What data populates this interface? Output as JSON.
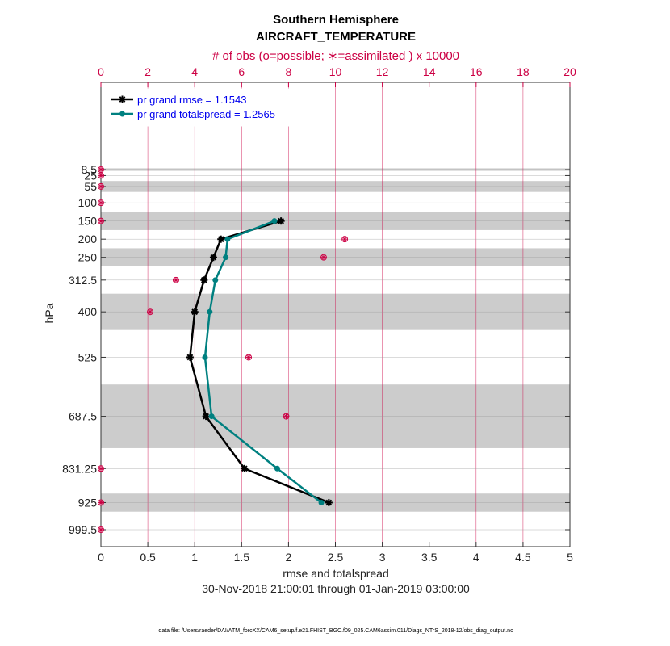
{
  "chart_data": {
    "type": "line",
    "title": "Southern Hemisphere",
    "subtitle": "AIRCRAFT_TEMPERATURE",
    "top_axis_label": "# of obs (o=possible; ∗=assimilated ) x 10000",
    "xlabel": "rmse and totalspread",
    "ylabel": "hPa",
    "date_range": "30-Nov-2018 21:00:01 through 01-Jan-2019 03:00:00",
    "footnote": "data file: /Users/raeder/DAI/ATM_forcXX/CAM6_setup/f.e21.FHIST_BGC.f09_025.CAM6assim.011/Diags_NTrS_2018-12/obs_diag_output.nc",
    "xlim": [
      0,
      5
    ],
    "top_xlim": [
      0,
      20
    ],
    "x_ticks": [
      "0",
      "0.5",
      "1",
      "1.5",
      "2",
      "2.5",
      "3",
      "3.5",
      "4",
      "4.5",
      "5"
    ],
    "top_ticks": [
      "0",
      "2",
      "4",
      "6",
      "8",
      "10",
      "12",
      "14",
      "16",
      "18",
      "20"
    ],
    "levels": [
      8.5,
      25,
      55,
      100,
      150,
      200,
      250,
      312.5,
      400,
      525,
      687.5,
      831.25,
      925,
      999.5
    ],
    "level_labels": [
      "8.5",
      "25",
      "55",
      "100",
      "150",
      "200",
      "250",
      "312.5",
      "400",
      "525",
      "687.5",
      "831.25",
      "925",
      "999.5"
    ],
    "layer_bands": [
      [
        5,
        12
      ],
      [
        40,
        70
      ],
      [
        125,
        175
      ],
      [
        225,
        275
      ],
      [
        350,
        450
      ],
      [
        600,
        775
      ],
      [
        900,
        950
      ]
    ],
    "series": [
      {
        "name": "pr grand rmse = 1.1543",
        "color": "#000000",
        "marker": "asterisk",
        "levels": [
          150,
          200,
          250,
          312.5,
          400,
          525,
          687.5,
          831.25,
          925
        ],
        "values": [
          1.92,
          1.28,
          1.2,
          1.1,
          1.0,
          0.95,
          1.12,
          1.53,
          2.43
        ]
      },
      {
        "name": "pr grand totalspread = 1.2565",
        "color": "#008080",
        "marker": "circle",
        "levels": [
          150,
          200,
          250,
          312.5,
          400,
          525,
          687.5,
          831.25,
          925
        ],
        "values": [
          1.85,
          1.35,
          1.33,
          1.22,
          1.16,
          1.11,
          1.18,
          1.88,
          2.35
        ]
      }
    ],
    "obs_counts": {
      "color": "#cc0044",
      "levels": [
        8.5,
        25,
        55,
        100,
        150,
        200,
        250,
        312.5,
        400,
        525,
        687.5,
        831.25,
        925,
        999.5
      ],
      "possible": [
        0,
        0,
        0,
        0,
        0,
        10.4,
        9.5,
        3.2,
        2.1,
        6.3,
        7.9,
        0,
        0,
        0
      ],
      "assimilated": [
        0,
        0,
        0,
        0,
        0,
        10.4,
        9.5,
        3.2,
        2.1,
        6.3,
        7.9,
        0,
        0,
        0
      ]
    }
  }
}
